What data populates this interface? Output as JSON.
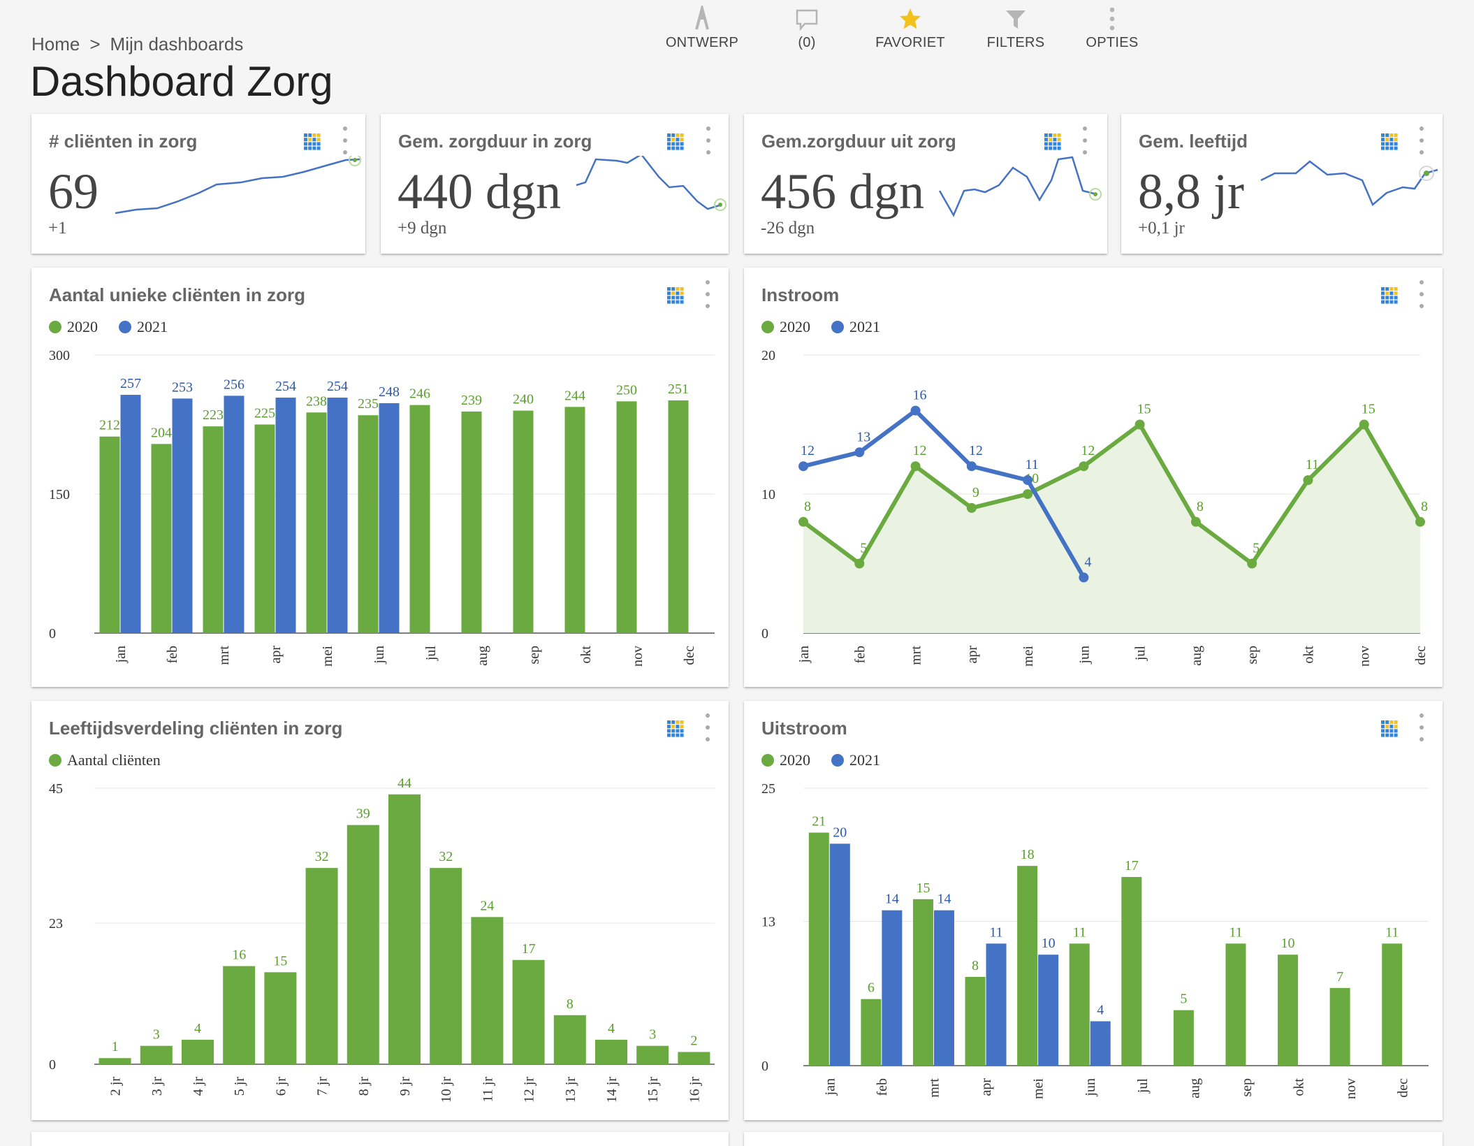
{
  "breadcrumb": {
    "home": "Home",
    "separator": ">",
    "current": "Mijn dashboards"
  },
  "page_title": "Dashboard Zorg",
  "toolbar": [
    {
      "name": "ontwerp",
      "label": "ONTWERP",
      "icon": "design-icon"
    },
    {
      "name": "comments",
      "label": "(0)",
      "icon": "comment-icon"
    },
    {
      "name": "favoriet",
      "label": "FAVORIET",
      "icon": "star-icon"
    },
    {
      "name": "filters",
      "label": "FILTERS",
      "icon": "filter-icon"
    },
    {
      "name": "opties",
      "label": "OPTIES",
      "icon": "more-vertical-icon"
    }
  ],
  "colors": {
    "green": "#6aaa40",
    "blue": "#4472c4",
    "green_label": "#5aa02c",
    "blue_label": "#2e5aa8",
    "axis": "#555555",
    "grid": "#e6e6e6",
    "area": "#eaf2e2"
  },
  "kpis": [
    {
      "id": "kpi-clienten",
      "title": "# cliënten in zorg",
      "value": "69",
      "delta": "+1"
    },
    {
      "id": "kpi-zorgduur-in",
      "title": "Gem. zorgduur in zorg",
      "value": "440 dgn",
      "delta": "+9 dgn"
    },
    {
      "id": "kpi-zorgduur-uit",
      "title": "Gem.zorgduur uit zorg",
      "value": "456 dgn",
      "delta": "-26 dgn"
    },
    {
      "id": "kpi-leeftijd",
      "title": "Gem. leeftijd",
      "value": "8,8 jr",
      "delta": "+0,1 jr"
    }
  ],
  "chart_data": [
    {
      "id": "unieke-clienten",
      "type": "bar",
      "title": "Aantal unieke cliënten in zorg",
      "categories": [
        "jan",
        "feb",
        "mrt",
        "apr",
        "mei",
        "jun",
        "jul",
        "aug",
        "sep",
        "okt",
        "nov",
        "dec"
      ],
      "series": [
        {
          "name": "2020",
          "values": [
            212,
            204,
            223,
            225,
            238,
            235,
            246,
            239,
            240,
            244,
            250,
            251
          ]
        },
        {
          "name": "2021",
          "values": [
            257,
            253,
            256,
            254,
            254,
            248,
            null,
            null,
            null,
            null,
            null,
            null
          ]
        }
      ],
      "ylim": [
        0,
        300
      ],
      "yticks": [
        0,
        150,
        300
      ],
      "legend": "top-left"
    },
    {
      "id": "instroom",
      "type": "line",
      "title": "Instroom",
      "categories": [
        "jan",
        "feb",
        "mrt",
        "apr",
        "mei",
        "jun",
        "jul",
        "aug",
        "sep",
        "okt",
        "nov",
        "dec"
      ],
      "series": [
        {
          "name": "2020",
          "values": [
            8,
            5,
            12,
            9,
            10,
            12,
            15,
            8,
            5,
            11,
            15,
            8
          ]
        },
        {
          "name": "2021",
          "values": [
            12,
            13,
            16,
            12,
            11,
            4,
            null,
            null,
            null,
            null,
            null,
            null
          ]
        }
      ],
      "ylim": [
        0,
        20
      ],
      "yticks": [
        0,
        10,
        20
      ],
      "legend": "top-left"
    },
    {
      "id": "leeftijd",
      "type": "bar",
      "title": "Leeftijdsverdeling cliënten in zorg",
      "categories": [
        "2 jr",
        "3 jr",
        "4 jr",
        "5 jr",
        "6 jr",
        "7 jr",
        "8 jr",
        "9 jr",
        "10 jr",
        "11 jr",
        "12 jr",
        "13 jr",
        "14 jr",
        "15 jr",
        "16 jr"
      ],
      "series": [
        {
          "name": "Aantal cliënten",
          "values": [
            1,
            3,
            4,
            16,
            15,
            32,
            39,
            44,
            32,
            24,
            17,
            8,
            4,
            3,
            2
          ]
        }
      ],
      "ylim": [
        0,
        45
      ],
      "yticks": [
        "0",
        "23",
        "45"
      ],
      "legend": "top-left"
    },
    {
      "id": "uitstroom",
      "type": "bar",
      "title": "Uitstroom",
      "categories": [
        "jan",
        "feb",
        "mrt",
        "apr",
        "mei",
        "jun",
        "jul",
        "aug",
        "sep",
        "okt",
        "nov",
        "dec"
      ],
      "series": [
        {
          "name": "2020",
          "values": [
            21,
            6,
            15,
            8,
            18,
            11,
            17,
            5,
            11,
            10,
            7,
            11
          ]
        },
        {
          "name": "2021",
          "values": [
            20,
            14,
            14,
            11,
            10,
            4,
            null,
            null,
            null,
            null,
            null,
            null
          ]
        }
      ],
      "ylim": [
        0,
        25
      ],
      "yticks": [
        "0",
        "13",
        "25"
      ],
      "legend": "top-left"
    }
  ]
}
